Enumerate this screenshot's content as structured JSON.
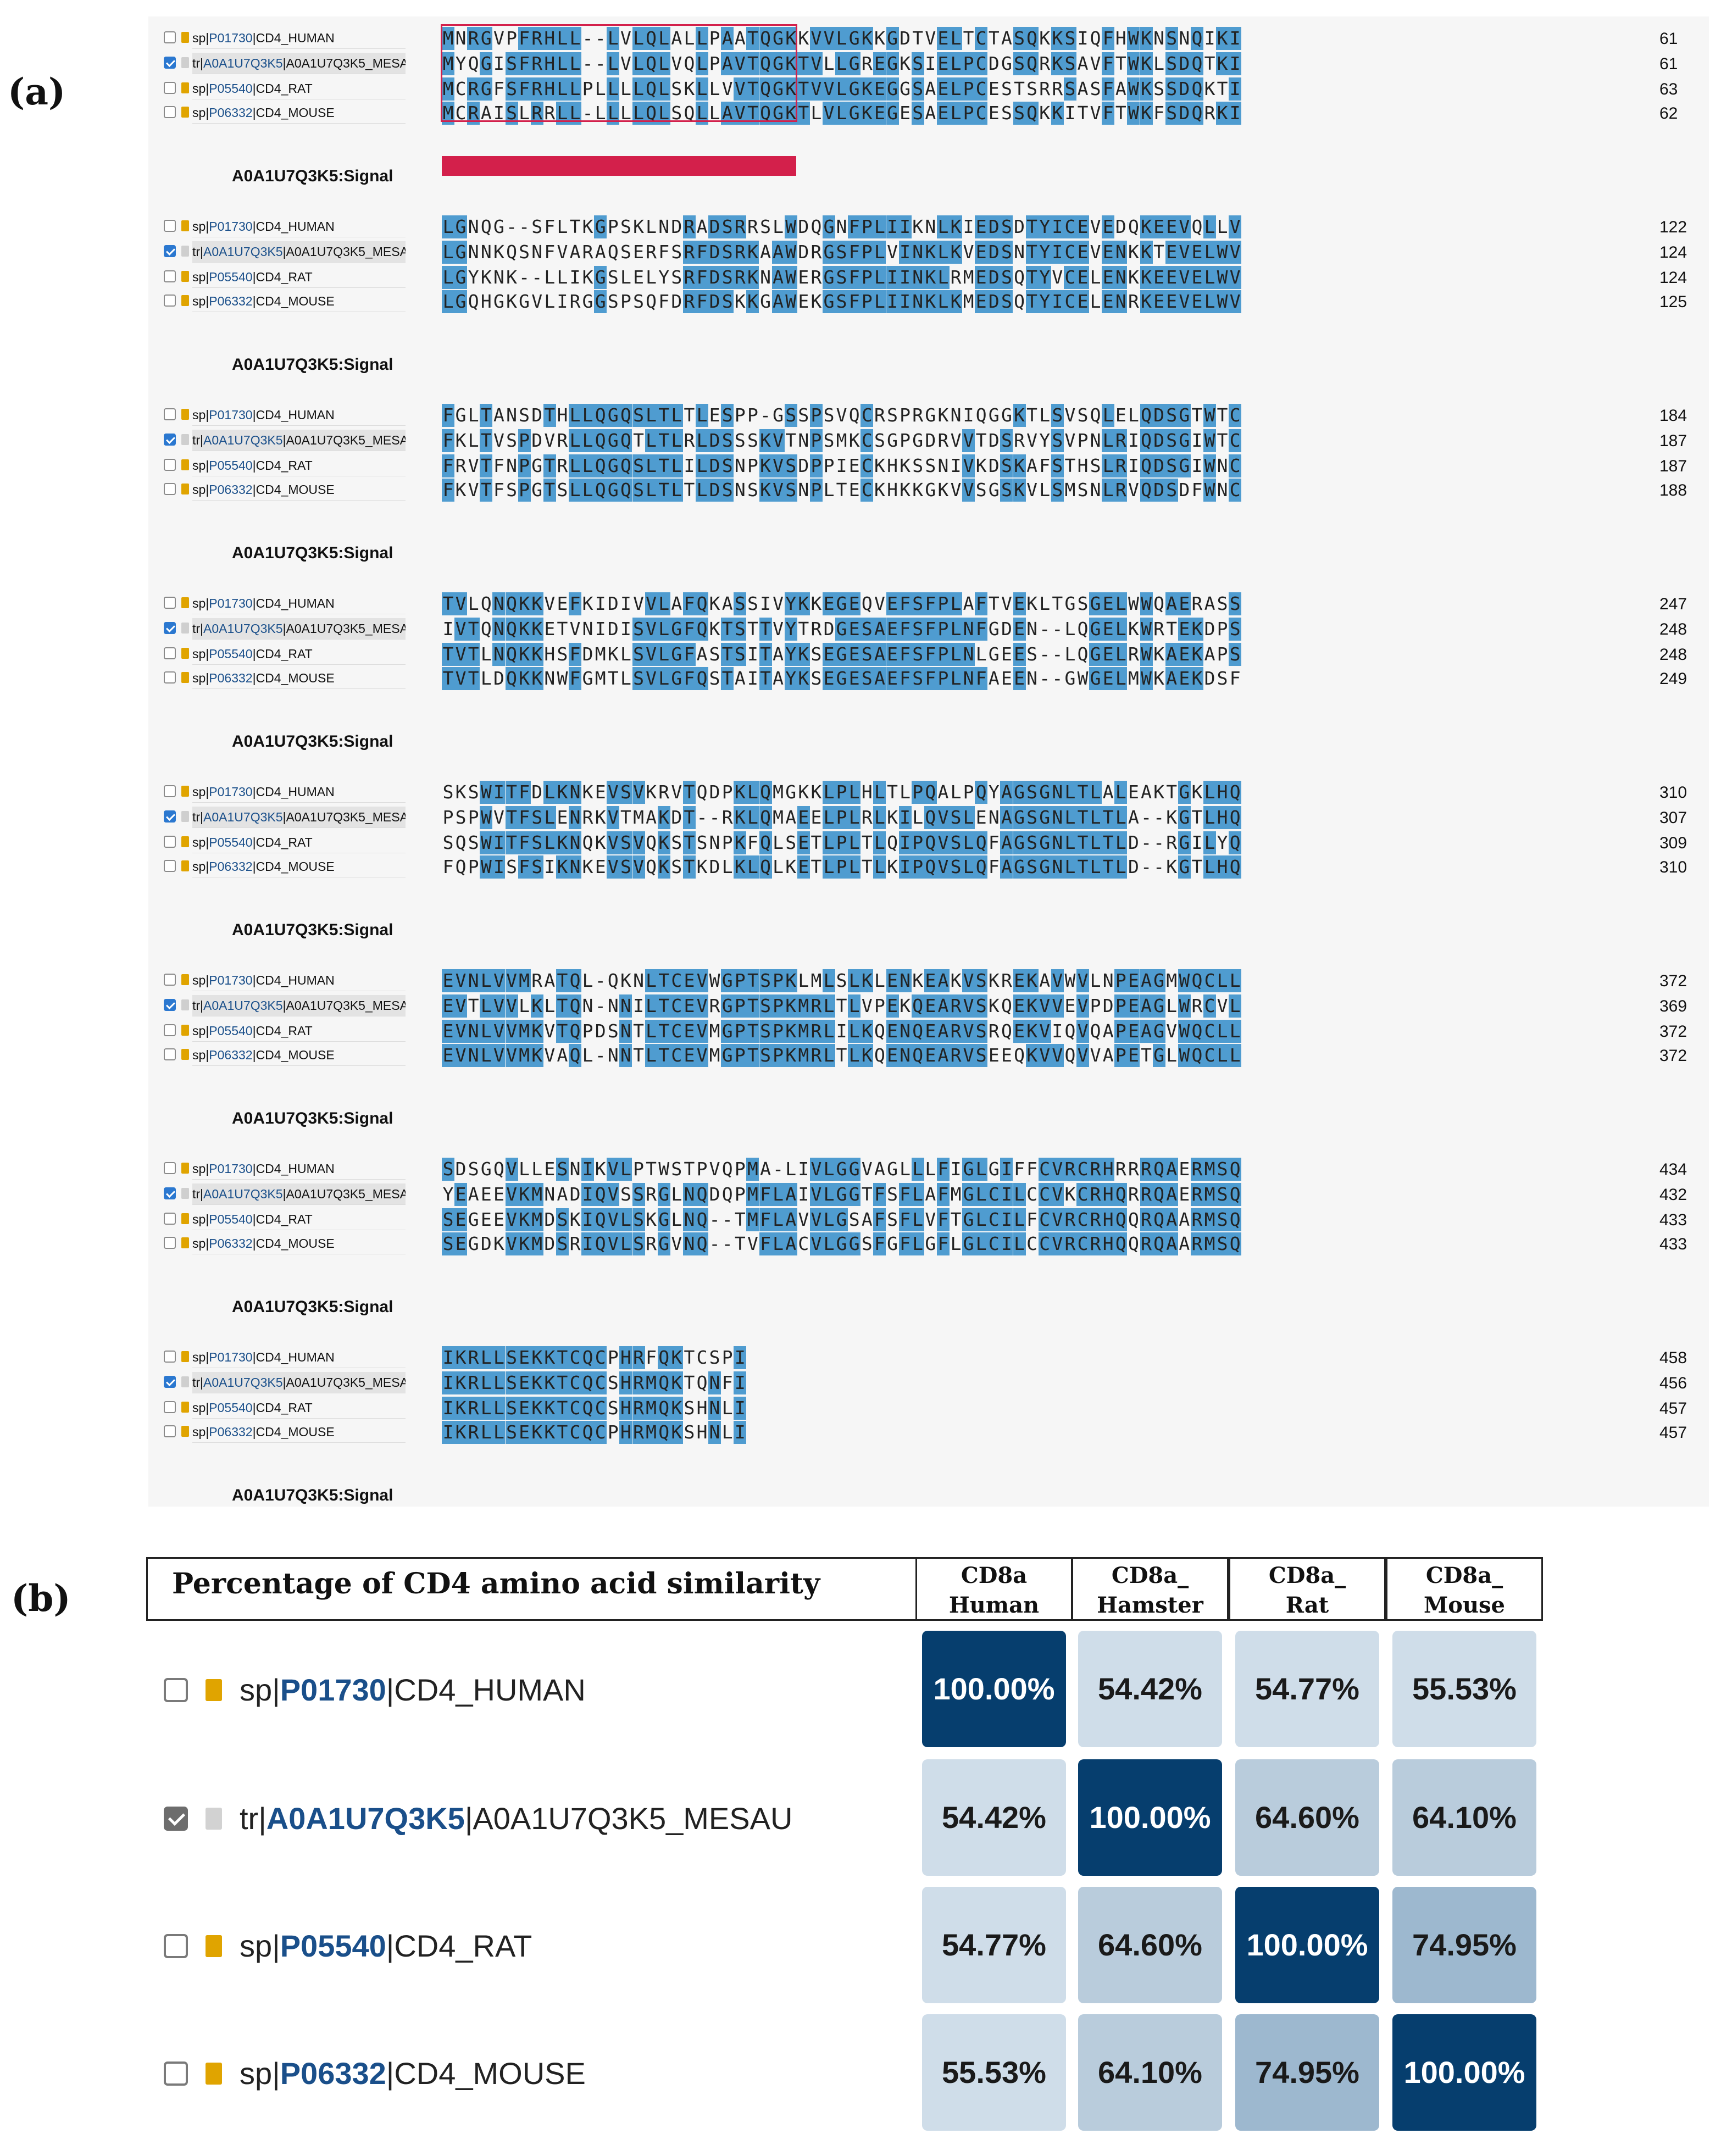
{
  "panel_a": {
    "letter": "(a)",
    "signal_label": "A0A1U7Q3K5:Signal",
    "rows": [
      {
        "label_pre": "sp|",
        "acc": "P01730",
        "label_post": "|CD4_HUMAN",
        "checked": false,
        "doc": "sp"
      },
      {
        "label_pre": "tr|",
        "acc": "A0A1U7Q3K5",
        "label_post": "|A0A1U7Q3K5_MESAU",
        "checked": true,
        "doc": "tr"
      },
      {
        "label_pre": "sp|",
        "acc": "P05540",
        "label_post": "|CD4_RAT",
        "checked": false,
        "doc": "sp"
      },
      {
        "label_pre": "sp|",
        "acc": "P06332",
        "label_post": "|CD4_MOUSE",
        "checked": false,
        "doc": "sp"
      }
    ],
    "blocks": [
      {
        "seqs": [
          "MNRGVPFRHLL--LVLQLALLPAATQGKKVVLGKKGDTVELTCTASQKKSIQFHWKNSNQIKI",
          "MYQGISFRHLL--LVLQLVQLPAVTQGKTVLLGREGKSIELPCDGSQRKSAVFTWKLSDQTKI",
          "MCRGFSFRHLLPLLLLQLSKLLVVTQGKTVVLGKEGGSAELPCESTSRRSASFAWKSSDQKTI",
          "MCRAISLRRLL-LLLLQLSQLLAVTQGKTLVLGKEGESAELPCESSQKKITVFTWKFSDQRKI"
        ],
        "nums": [
          "61",
          "61",
          "63",
          "62"
        ]
      },
      {
        "seqs": [
          "LGNQG--SFLTKGPSKLNDRADSRRSLWDQGNFPLIIKNLKIEDSDTYICEVEDQKEEVQLLV",
          "LGNNKQSNFVARAQSERFSRFDSRKAAWDRGSFPLVINKLKVEDSNTYICEVENKKTEVELWV",
          "LGYKNK--LLIKGSLELYSRFDSRKNAWERGSFPLIINKLRMEDSQTYVCELENKKEEVELWV",
          "LGQHGKGVLIRGGSPSQFDRFDSKKGAWEKGSFPLIINKLKMEDSQTYICELENRKEEVELWV"
        ],
        "nums": [
          "122",
          "124",
          "124",
          "125"
        ]
      },
      {
        "seqs": [
          "FGLTANSDTHLLQGQSLTLTLESPP-GSSPSVQCRSPRGKNIQGGKTLSVSQLELQDSGTWTC",
          "FKLTVSPDVRLLQGQTLTLRLDSSSKVTNPSMKCSGPGDRVVTDSRVYSVPNLRIQDSGIWTC",
          "FRVTFNPGTRLLQGQSLTLILDSNPKVSDPPIECKHKSSNIVKDSKAFSTHSLRIQDSGIWNC",
          "FKVTFSPGTSLLQGQSLTLTLDSNSKVSNPLTECKHKKGKVVSGSKVLSMSNLRVQDSDFWNC"
        ],
        "nums": [
          "184",
          "187",
          "187",
          "188"
        ]
      },
      {
        "seqs": [
          "TVLQNQKKVEFKIDIVVLAFQKASSIVYKKEGEQVEFSFPLAFTVEKLTGSGELWWQAERASS",
          "IVTQNQKKETVNIDISVLGFQKTSTTVYTRDGESAEFSFPLNFGDEN--LQGELKWRTEKDPS",
          "TVTLNQKKHSFDMKLSVLGFASTSITAYKSEGESAEFSFPLNLGEES--LQGELRWKAEKAPS",
          "TVTLDQKKNWFGMTLSVLGFQSTAITAYKSEGESAEFSFPLNFAEEN--GWGELMWKAEKDSF"
        ],
        "nums": [
          "247",
          "248",
          "248",
          "249"
        ]
      },
      {
        "seqs": [
          "SKSWITFDLKNKEVSVKRVTQDPKLQMGKKLPLHLTLPQALPQYAGSGNLTLALEAKTGKLHQ",
          "PSPWVTFSLENRKVTMAKDT--RKLQMAEELPLRLKILQVSLENAGSGNLTLTLA--KGTLHQ",
          "SQSWITFSLKNQKVSVQKSTSNPKFQLSETLPLTLQIPQVSLQFAGSGNLTLTLD--RGILYQ",
          "FQPWISFSIKNKEVSVQKSTKDLKLQLKETLPLTLKIPQVSLQFAGSGNLTLTLD--KGTLHQ"
        ],
        "nums": [
          "310",
          "307",
          "309",
          "310"
        ]
      },
      {
        "seqs": [
          "EVNLVVMRATQL-QKNLTCEVWGPTSPKLMLSLKLENKEAKVSKREKAVWVLNPEAGMWQCLL",
          "EVTLVVLKLTQN-NNILTCEVRGPTSPKMRLTLVPEKQEARVSKQEKVVEVPDPEAGLWRCVL",
          "EVNLVVMKVTQPDSNTLTCEVMGPTSPKMRLILKQENQEARVSRQEKVIQVQAPEAGVWQCLL",
          "EVNLVVMKVAQL-NNTLTCEVMGPTSPKMRLTLKQENQEARVSEEQKVVQVVAPETGLWQCLL"
        ],
        "nums": [
          "372",
          "369",
          "372",
          "372"
        ]
      },
      {
        "seqs": [
          "SDSGQVLLESNIKVLPTWSTPVQPMA-LIVLGGVAGLLLFIGLGIFFCVRCRHRRRQAERMSQ",
          "YEAEEVKMNADIQVSSRGLNQDQPMFLAIVLGGTFSFLAFMGLCILCCVKCRHQRRQAERMSQ",
          "SEGEEVKMDSKIQVLSKGLNQ--TMFLAVVLGSAFSFLVFTGLCILFCVRCRHQQRQAARMSQ",
          "SEGDKVKMDSRIQVLSRGVNQ--TVFLACVLGGSFGFLGFLGLCILCCVRCRHQQRQAARMSQ"
        ],
        "nums": [
          "434",
          "432",
          "433",
          "433"
        ]
      },
      {
        "seqs": [
          "IKRLLSEKKTCQCPHRFQKTCSPI",
          "IKRLLSEKKTCQCSHRMQKTQNFI",
          "IKRLLSEKKTCQCSHRMQKSHNLI",
          "IKRLLSEKKTCQCPHRMQKSHNLI"
        ],
        "nums": [
          "458",
          "456",
          "457",
          "457"
        ]
      }
    ]
  },
  "panel_b": {
    "letter": "(b)",
    "title": "Percentage of CD4 amino acid similarity",
    "columns": [
      {
        "line1": "CD8a",
        "line2": "Human"
      },
      {
        "line1": "CD8a_",
        "line2": "Hamster"
      },
      {
        "line1": "CD8a_",
        "line2": "Rat"
      },
      {
        "line1": "CD8a_",
        "line2": "Mouse"
      }
    ],
    "rows": [
      {
        "pre": "sp|",
        "acc": "P01730",
        "post": "|CD4_HUMAN",
        "checked": false,
        "doc": "sp",
        "values": [
          "100.00%",
          "54.42%",
          "54.77%",
          "55.53%"
        ]
      },
      {
        "pre": "tr|",
        "acc": "A0A1U7Q3K5",
        "post": "|A0A1U7Q3K5_MESAU",
        "checked": true,
        "doc": "tr",
        "values": [
          "54.42%",
          "100.00%",
          "64.60%",
          "64.10%"
        ]
      },
      {
        "pre": "sp|",
        "acc": "P05540",
        "post": "|CD4_RAT",
        "checked": false,
        "doc": "sp",
        "values": [
          "54.77%",
          "64.60%",
          "100.00%",
          "74.95%"
        ]
      },
      {
        "pre": "sp|",
        "acc": "P06332",
        "post": "|CD4_MOUSE",
        "checked": false,
        "doc": "sp",
        "values": [
          "55.53%",
          "64.10%",
          "74.95%",
          "100.00%"
        ]
      }
    ],
    "colors": {
      "diag": "#063e6e",
      "c54": "#cfdde9",
      "c64": "#b9ccdc",
      "c74": "#9db8cf"
    }
  },
  "colors": {
    "highlight": "#4f9cd0",
    "signal": "#d3204b",
    "panel_bg": "#f6f6f6"
  }
}
